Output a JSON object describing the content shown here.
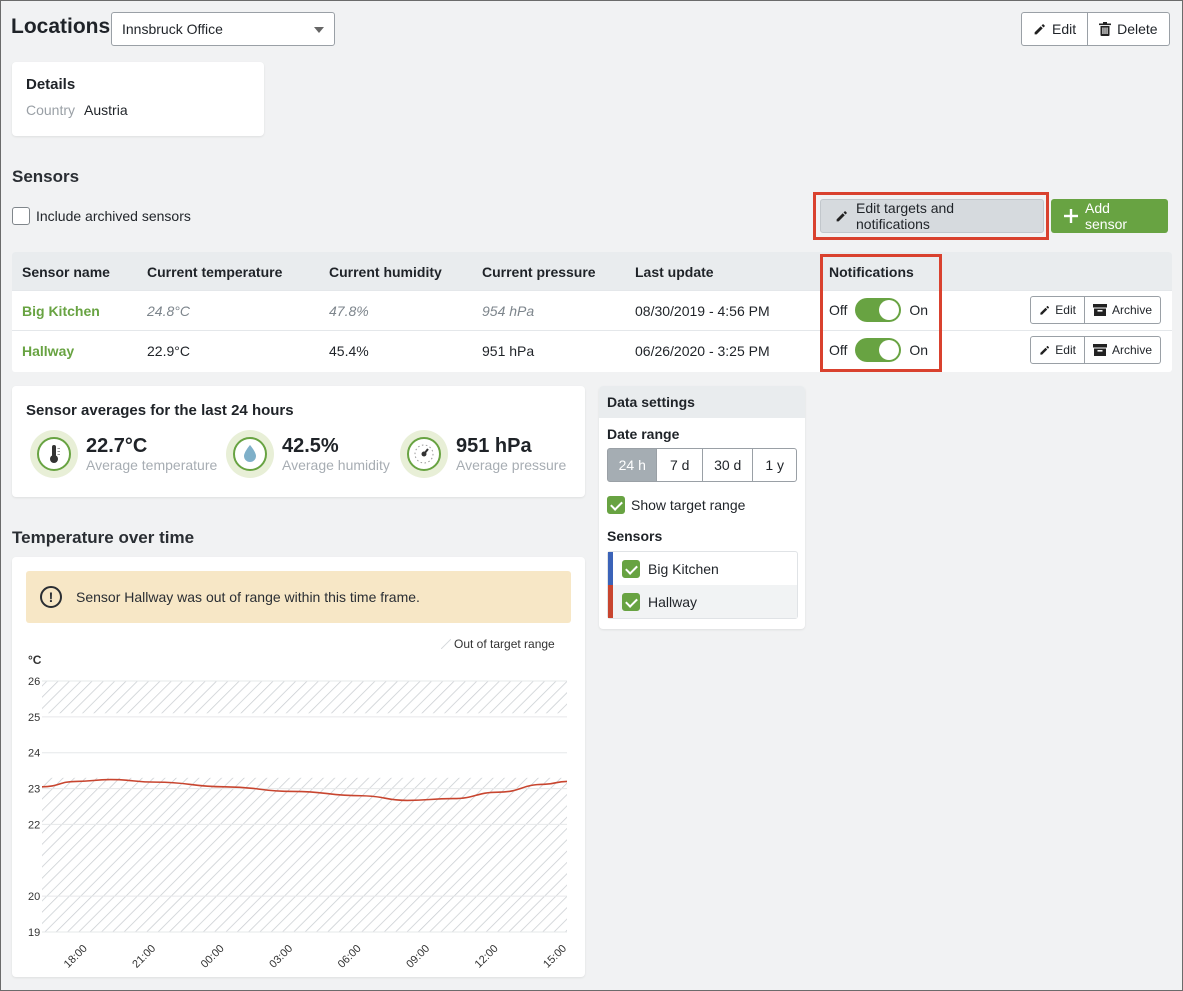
{
  "header": {
    "title": "Locations",
    "location_select": {
      "value": "Innsbruck Office"
    },
    "edit_label": "Edit",
    "delete_label": "Delete"
  },
  "details": {
    "title": "Details",
    "country_label": "Country",
    "country_value": "Austria"
  },
  "sensors_section": {
    "title": "Sensors",
    "include_archived_label": "Include archived sensors",
    "include_archived_checked": false,
    "edit_targets_label": "Edit targets and notifications",
    "add_sensor_label": "Add sensor"
  },
  "sensor_table": {
    "columns": [
      "Sensor name",
      "Current temperature",
      "Current humidity",
      "Current pressure",
      "Last update",
      "Notifications"
    ],
    "rows": [
      {
        "name": "Big Kitchen",
        "temperature": "24.8°C",
        "humidity": "47.8%",
        "pressure": "954 hPa",
        "last_update": "08/30/2019 - 4:56 PM",
        "notif_off": "Off",
        "notif_on": "On",
        "notifications_on": true,
        "edit_label": "Edit",
        "archive_label": "Archive"
      },
      {
        "name": "Hallway",
        "temperature": "22.9°C",
        "humidity": "45.4%",
        "pressure": "951 hPa",
        "last_update": "06/26/2020 - 3:25 PM",
        "notif_off": "Off",
        "notif_on": "On",
        "notifications_on": true,
        "edit_label": "Edit",
        "archive_label": "Archive"
      }
    ]
  },
  "averages": {
    "title": "Sensor averages for the last 24 hours",
    "items": [
      {
        "value": "22.7°C",
        "label": "Average temperature",
        "icon": "thermometer-icon"
      },
      {
        "value": "42.5%",
        "label": "Average humidity",
        "icon": "droplet-icon"
      },
      {
        "value": "951 hPa",
        "label": "Average pressure",
        "icon": "gauge-icon"
      }
    ]
  },
  "data_settings": {
    "title": "Data settings",
    "date_range_label": "Date range",
    "ranges": [
      "24 h",
      "7 d",
      "30 d",
      "1 y"
    ],
    "active_range": "24 h",
    "show_target_label": "Show target range",
    "show_target_checked": true,
    "sensors_label": "Sensors",
    "sensors": [
      {
        "name": "Big Kitchen",
        "color": "#3b63b8",
        "checked": true
      },
      {
        "name": "Hallway",
        "color": "#c8452f",
        "checked": true
      }
    ]
  },
  "chart_section": {
    "title": "Temperature over time",
    "alert_text": "Sensor Hallway was out of range within this time frame."
  },
  "colors": {
    "accent_green": "#68a342",
    "highlight_red": "#d9412e",
    "alert_bg": "#f7e7c6"
  },
  "chart_data": {
    "type": "line",
    "title": "",
    "ylabel": "°C",
    "legend": "Out of target range",
    "ylim": [
      19,
      26
    ],
    "y_ticks": [
      19,
      20,
      22,
      23,
      24,
      25,
      26
    ],
    "x_ticks": [
      "18:00",
      "21:00",
      "00:00",
      "03:00",
      "06:00",
      "09:00",
      "12:00",
      "15:00"
    ],
    "out_of_range_bands": [
      [
        19,
        23.3
      ],
      [
        25.1,
        26
      ]
    ],
    "series": [
      {
        "name": "Hallway",
        "color": "#c8452f",
        "x": [
          16.0,
          17.5,
          19.0,
          21.0,
          24.0,
          27.0,
          30.0,
          32.0,
          34.0,
          36.0,
          38.0,
          39.0
        ],
        "y": [
          23.05,
          23.2,
          23.25,
          23.18,
          23.05,
          22.92,
          22.8,
          22.67,
          22.72,
          22.9,
          23.12,
          23.2
        ]
      }
    ]
  }
}
